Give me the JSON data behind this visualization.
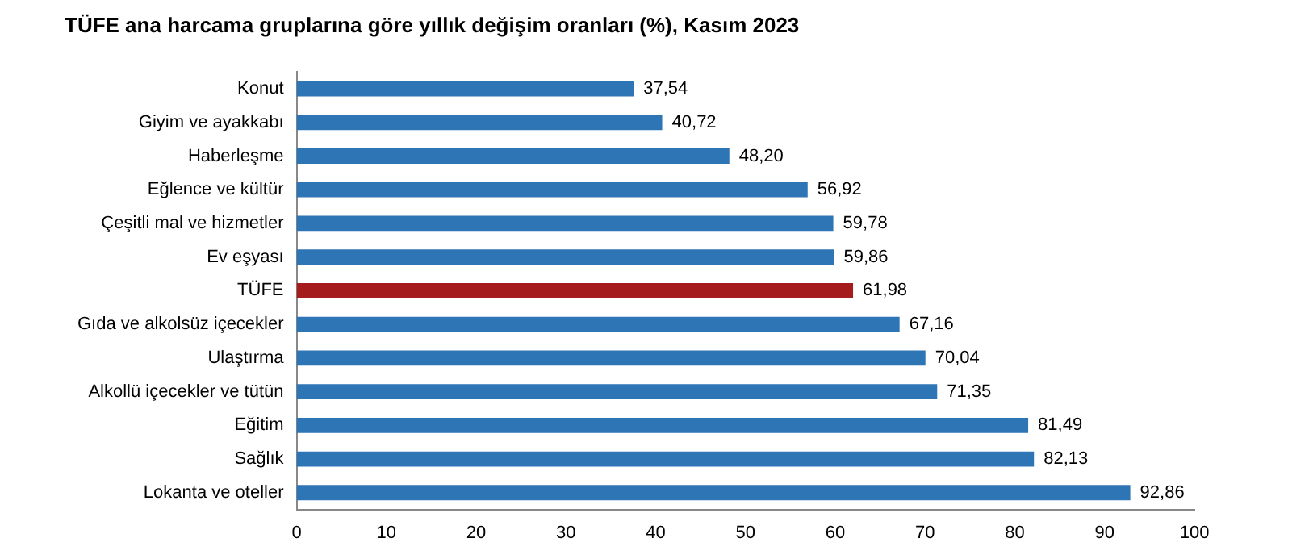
{
  "chart_data": {
    "type": "bar",
    "orientation": "horizontal",
    "title": "TÜFE ana harcama gruplarına göre yıllık değişim oranları (%), Kasım 2023",
    "categories": [
      "Konut",
      "Giyim ve ayakkabı",
      "Haberleşme",
      "Eğlence ve kültür",
      "Çeşitli mal ve hizmetler",
      "Ev eşyası",
      "TÜFE",
      "Gıda ve alkolsüz içecekler",
      "Ulaştırma",
      "Alkollü içecekler ve tütün",
      "Eğitim",
      "Sağlık",
      "Lokanta ve oteller"
    ],
    "values": [
      37.54,
      40.72,
      48.2,
      56.92,
      59.78,
      59.86,
      61.98,
      67.16,
      70.04,
      71.35,
      81.49,
      82.13,
      92.86
    ],
    "value_labels": [
      "37,54",
      "40,72",
      "48,20",
      "56,92",
      "59,78",
      "59,86",
      "61,98",
      "67,16",
      "70,04",
      "71,35",
      "81,49",
      "82,13",
      "92,86"
    ],
    "colors": [
      "#2e75b6",
      "#2e75b6",
      "#2e75b6",
      "#2e75b6",
      "#2e75b6",
      "#2e75b6",
      "#a51c1c",
      "#2e75b6",
      "#2e75b6",
      "#2e75b6",
      "#2e75b6",
      "#2e75b6",
      "#2e75b6"
    ],
    "xlim": [
      0,
      100
    ],
    "xticks": [
      0,
      10,
      20,
      30,
      40,
      50,
      60,
      70,
      80,
      90,
      100
    ],
    "grid": false,
    "legend": false
  }
}
